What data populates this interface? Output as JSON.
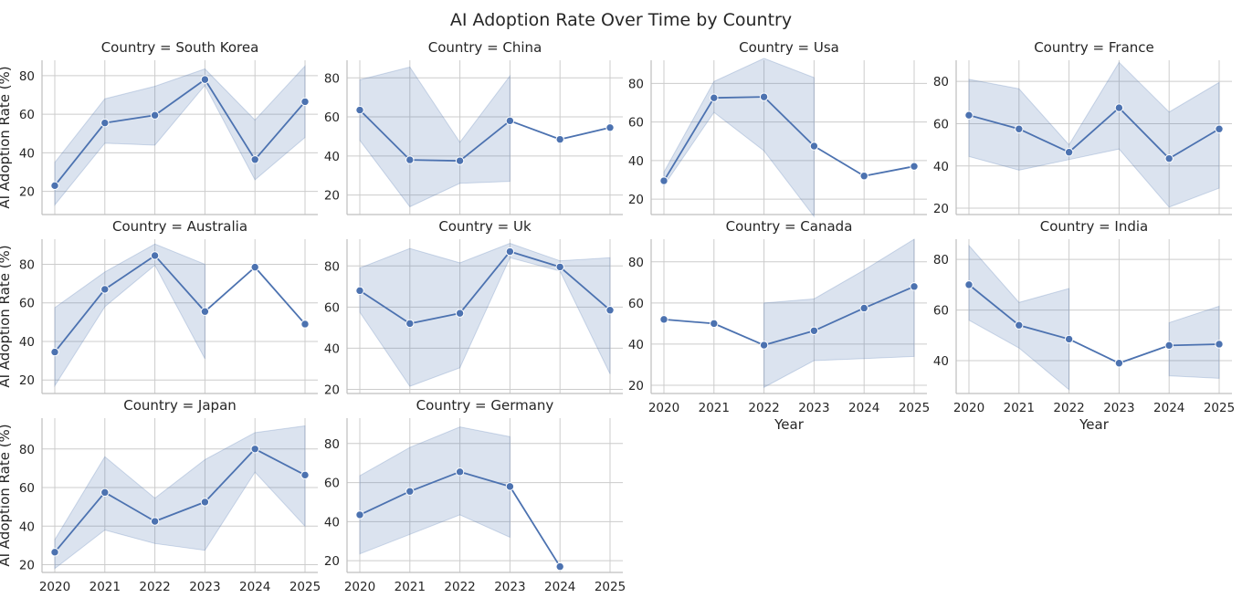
{
  "title": "AI Adoption Rate Over Time by Country",
  "style": {
    "line_color": "#4c72b0",
    "band_color": "#4c72b0",
    "grid_color": "#cccccc",
    "spine_color": "#bfbfbf",
    "text_color": "#262626"
  },
  "chart_data": {
    "type": "line",
    "layout": "facet-grid",
    "columns": 4,
    "title": "AI Adoption Rate Over Time by Country",
    "xlabel": "Year",
    "ylabel": "AI Adoption Rate (%)",
    "x": [
      2020,
      2021,
      2022,
      2023,
      2024,
      2025
    ],
    "grid": true,
    "markers": true,
    "band": "confidence interval",
    "facets": [
      {
        "title": "Country = South Korea",
        "ylim": [
          8,
          88
        ],
        "yticks": [
          20,
          40,
          60,
          80
        ],
        "values": [
          23,
          55.5,
          59.5,
          78,
          36.5,
          66.5
        ],
        "lower": [
          13,
          45,
          44,
          75,
          26,
          48
        ],
        "upper": [
          35,
          68,
          74.5,
          83.5,
          57,
          85
        ]
      },
      {
        "title": "Country = China",
        "ylim": [
          10,
          89
        ],
        "yticks": [
          20,
          40,
          60,
          80
        ],
        "values": [
          63.5,
          38,
          37.5,
          58,
          48.5,
          54.5
        ],
        "lower": [
          48,
          14,
          26,
          27,
          null,
          null
        ],
        "upper": [
          79,
          85.5,
          47,
          81,
          null,
          null
        ]
      },
      {
        "title": "Country = Usa",
        "ylim": [
          12,
          92
        ],
        "yticks": [
          20,
          40,
          60,
          80
        ],
        "values": [
          29.5,
          72.5,
          73,
          47.5,
          32,
          37
        ],
        "lower": [
          27,
          65,
          45,
          11,
          null,
          null
        ],
        "upper": [
          34,
          81,
          93,
          83,
          null,
          null
        ]
      },
      {
        "title": "Country = France",
        "ylim": [
          17,
          90
        ],
        "yticks": [
          20,
          40,
          60,
          80
        ],
        "values": [
          64,
          57.5,
          46.5,
          67.5,
          43.5,
          57.5
        ],
        "lower": [
          44.5,
          38,
          43,
          48,
          20.5,
          29.5
        ],
        "upper": [
          81,
          76.5,
          50,
          89,
          65.5,
          79.5
        ]
      },
      {
        "title": "Country = Australia",
        "ylim": [
          13,
          93
        ],
        "yticks": [
          20,
          40,
          60,
          80
        ],
        "values": [
          34.5,
          67,
          84.5,
          55.5,
          78.5,
          49
        ],
        "lower": [
          17,
          58,
          79.5,
          31,
          null,
          null
        ],
        "upper": [
          57.5,
          76,
          90.5,
          80,
          null,
          null
        ]
      },
      {
        "title": "Country = Uk",
        "ylim": [
          18,
          93
        ],
        "yticks": [
          20,
          40,
          60,
          80
        ],
        "values": [
          68,
          52,
          57,
          87,
          79.5,
          58.5
        ],
        "lower": [
          57.5,
          21.5,
          30.5,
          84,
          77.5,
          27.5
        ],
        "upper": [
          79,
          88.5,
          81.5,
          91,
          82.5,
          84
        ]
      },
      {
        "title": "Country = Canada",
        "ylim": [
          16,
          91
        ],
        "yticks": [
          20,
          40,
          60,
          80
        ],
        "values": [
          52,
          50,
          39.5,
          46.5,
          57.5,
          68
        ],
        "lower": [
          null,
          null,
          19,
          32,
          33,
          34
        ],
        "upper": [
          null,
          null,
          60,
          62,
          76,
          91
        ]
      },
      {
        "title": "Country = India",
        "ylim": [
          27,
          88
        ],
        "yticks": [
          40,
          60,
          80
        ],
        "values": [
          70,
          54,
          48.5,
          39,
          46,
          46.5
        ],
        "lower": [
          56,
          45,
          28.5,
          null,
          34,
          33
        ],
        "upper": [
          85.5,
          63,
          68.5,
          null,
          55,
          61.5
        ]
      },
      {
        "title": "Country = Japan",
        "ylim": [
          16,
          96
        ],
        "yticks": [
          20,
          40,
          60,
          80
        ],
        "values": [
          26.5,
          57.5,
          42.5,
          52.5,
          80,
          66.5
        ],
        "lower": [
          18,
          38,
          31,
          27.5,
          68,
          40
        ],
        "upper": [
          33,
          76,
          54.5,
          74.5,
          88.5,
          92
        ]
      },
      {
        "title": "Country = Germany",
        "ylim": [
          14,
          93
        ],
        "yticks": [
          20,
          40,
          60,
          80
        ],
        "values": [
          43.5,
          55.5,
          65.5,
          58,
          17,
          null
        ],
        "lower": [
          23.5,
          33.5,
          43.5,
          32,
          null,
          null
        ],
        "upper": [
          63.5,
          78,
          88.5,
          83.5,
          null,
          null
        ]
      }
    ]
  }
}
